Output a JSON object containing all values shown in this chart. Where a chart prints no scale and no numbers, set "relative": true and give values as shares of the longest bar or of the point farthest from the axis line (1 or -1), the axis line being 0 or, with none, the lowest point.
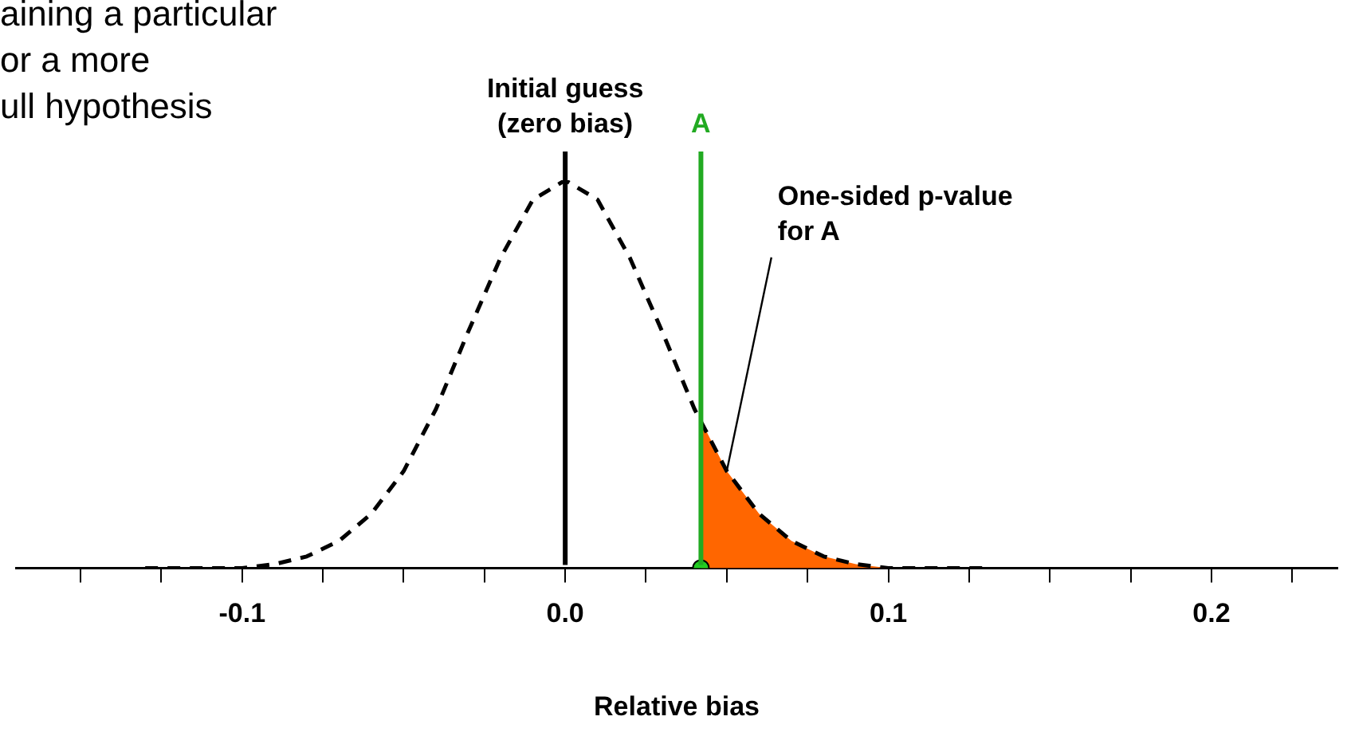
{
  "chart_data": {
    "type": "line",
    "relative": true,
    "xlabel": "Relative bias",
    "xlim": [
      -0.17,
      0.239
    ],
    "xticks": [
      {
        "value": -0.15,
        "label": null
      },
      {
        "value": -0.125,
        "label": null
      },
      -0.1,
      {
        "value": -0.075,
        "label": null
      },
      {
        "value": -0.05,
        "label": null
      },
      {
        "value": -0.025,
        "label": null
      },
      {
        "value": 0,
        "label": "0.0"
      },
      {
        "value": 0.025,
        "label": null
      },
      {
        "value": 0.05,
        "label": null
      },
      {
        "value": 0.075,
        "label": null
      },
      0.1,
      {
        "value": 0.125,
        "label": null
      },
      {
        "value": 0.15,
        "label": null
      },
      {
        "value": 0.175,
        "label": null
      },
      0.2,
      {
        "value": 0.225,
        "label": null
      }
    ],
    "grid": false,
    "legend": false,
    "series": [
      {
        "type": "area",
        "color": "#ff6600",
        "x": [
          0.042,
          0.05,
          0.06,
          0.07,
          0.08,
          0.09,
          0.1,
          0.11,
          0.12
        ],
        "values": [
          0.38,
          0.25,
          0.14,
          0.07,
          0.03,
          0.01,
          0,
          0,
          0
        ]
      },
      {
        "type": "line",
        "color": "#000000",
        "line_style": "dashed",
        "marker": "none",
        "x": [
          -0.13,
          -0.12,
          -0.11,
          -0.1,
          -0.09,
          -0.08,
          -0.07,
          -0.06,
          -0.05,
          -0.04,
          -0.03,
          -0.02,
          -0.01,
          0,
          0.01,
          0.02,
          0.03,
          0.04,
          0.05,
          0.06,
          0.07,
          0.08,
          0.09,
          0.1,
          0.11,
          0.12,
          0.13
        ],
        "values": [
          0,
          0,
          0,
          0,
          0.01,
          0.03,
          0.07,
          0.14,
          0.25,
          0.41,
          0.61,
          0.8,
          0.95,
          1,
          0.95,
          0.8,
          0.61,
          0.41,
          0.25,
          0.14,
          0.07,
          0.03,
          0.01,
          0,
          0,
          0,
          0
        ]
      },
      {
        "type": "scatter",
        "color": "#22cc22",
        "marker": "circle",
        "x": [
          0.042
        ],
        "values": [
          0
        ]
      }
    ],
    "ref_lines": [
      {
        "axis": "x",
        "value": 0,
        "label": "Initial guess\n(zero bias)",
        "color": "#000000"
      },
      {
        "axis": "x",
        "value": 0.042,
        "label": "A",
        "color": "#22aa22"
      }
    ],
    "annotations": [
      "aining a particular\nor a more\null hypothesis",
      {
        "text": "One-sided p-value\nfor A",
        "x": 0.05,
        "y": 0.25
      }
    ]
  }
}
